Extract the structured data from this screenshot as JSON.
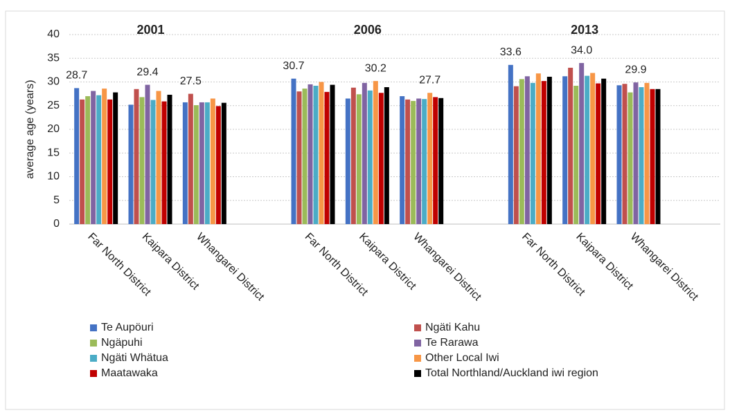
{
  "chart_data": {
    "type": "bar",
    "y_label": "average age (years)",
    "categories": [
      "Far North District",
      "Kaipara District",
      "Whangarei District",
      null,
      "Far North District",
      "Kaipara District",
      "Whangarei District",
      null,
      "Far North District",
      "Kaipara District",
      "Whangarei District",
      null
    ],
    "group_labels": [
      "2001",
      "2006",
      "2013"
    ],
    "ylim": [
      0,
      40
    ],
    "yticks": [
      0,
      5,
      10,
      15,
      20,
      25,
      30,
      35,
      40
    ],
    "grid": true,
    "legend": "bottom",
    "series": [
      {
        "name": "Te Aupöuri",
        "color": "#4472c4",
        "values": [
          28.7,
          25.2,
          25.7,
          null,
          30.7,
          26.5,
          27.0,
          null,
          33.6,
          31.2,
          29.3,
          null
        ],
        "value_labels": [
          "28.7",
          null,
          null,
          null,
          "30.7",
          null,
          null,
          null,
          "33.6",
          null,
          null,
          null
        ]
      },
      {
        "name": "Ngäti Kahu",
        "color": "#c0504d",
        "values": [
          26.3,
          28.5,
          27.5,
          null,
          28.0,
          28.8,
          26.3,
          null,
          29.1,
          33.0,
          29.6,
          null
        ],
        "value_labels": [
          null,
          null,
          "27.5",
          null,
          null,
          null,
          null,
          null,
          null,
          null,
          null,
          null
        ]
      },
      {
        "name": "Ngäpuhi",
        "color": "#9bbb59",
        "values": [
          27.0,
          26.8,
          25.1,
          null,
          28.6,
          27.4,
          26.0,
          null,
          30.6,
          29.2,
          27.8,
          null
        ]
      },
      {
        "name": "Te Rarawa",
        "color": "#8064a2",
        "values": [
          28.1,
          29.4,
          25.7,
          null,
          29.5,
          29.8,
          26.5,
          null,
          31.2,
          34.0,
          29.9,
          null
        ],
        "value_labels": [
          null,
          "29.4",
          null,
          null,
          null,
          null,
          null,
          null,
          null,
          "34.0",
          "29.9",
          null
        ]
      },
      {
        "name": "Ngäti Whätua",
        "color": "#4bacc6",
        "values": [
          27.2,
          26.2,
          25.7,
          null,
          29.2,
          28.2,
          26.4,
          null,
          29.8,
          31.3,
          28.9,
          null
        ]
      },
      {
        "name": "Other Local Iwi",
        "color": "#f79646",
        "values": [
          28.6,
          28.1,
          26.5,
          null,
          30.0,
          30.2,
          27.7,
          null,
          31.8,
          31.9,
          29.8,
          null
        ],
        "value_labels": [
          null,
          null,
          null,
          null,
          null,
          "30.2",
          "27.7",
          null,
          null,
          null,
          null,
          null
        ]
      },
      {
        "name": "Maatawaka",
        "color": "#c00000",
        "values": [
          26.3,
          25.9,
          24.9,
          null,
          27.9,
          27.7,
          26.8,
          null,
          30.2,
          29.7,
          28.5,
          null
        ]
      },
      {
        "name": "Total Northland/Auckland iwi region",
        "color": "#000000",
        "values": [
          27.8,
          27.3,
          25.6,
          null,
          29.4,
          28.9,
          26.6,
          null,
          31.1,
          30.7,
          28.5,
          null
        ]
      }
    ]
  }
}
